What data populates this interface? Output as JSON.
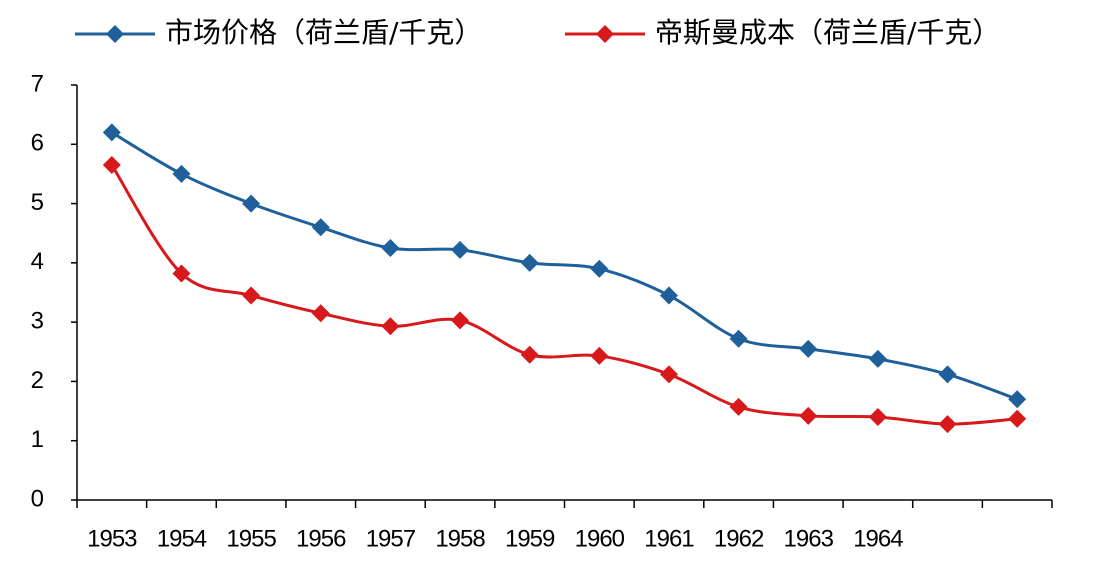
{
  "chart_data": {
    "type": "line",
    "categories": [
      "1953",
      "1954",
      "1955",
      "1956",
      "1957",
      "1958",
      "1959",
      "1960",
      "1961",
      "1962",
      "1963",
      "1964",
      null,
      null
    ],
    "series": [
      {
        "name": "市场价格（荷兰盾/千克）",
        "color": "#1f5f9a",
        "values": [
          6.2,
          5.5,
          5.0,
          4.6,
          4.25,
          4.22,
          4.0,
          3.9,
          3.45,
          2.72,
          2.55,
          2.38,
          2.12,
          1.7
        ]
      },
      {
        "name": "帝斯曼成本（荷兰盾/千克）",
        "color": "#d7191c",
        "values": [
          5.65,
          3.82,
          3.45,
          3.15,
          2.93,
          3.03,
          2.45,
          2.43,
          2.12,
          1.57,
          1.42,
          1.4,
          1.28,
          1.37
        ]
      }
    ],
    "ylim": [
      0,
      7
    ],
    "yticks": [
      0,
      1,
      2,
      3,
      4,
      5,
      6,
      7
    ],
    "legend": "top"
  }
}
